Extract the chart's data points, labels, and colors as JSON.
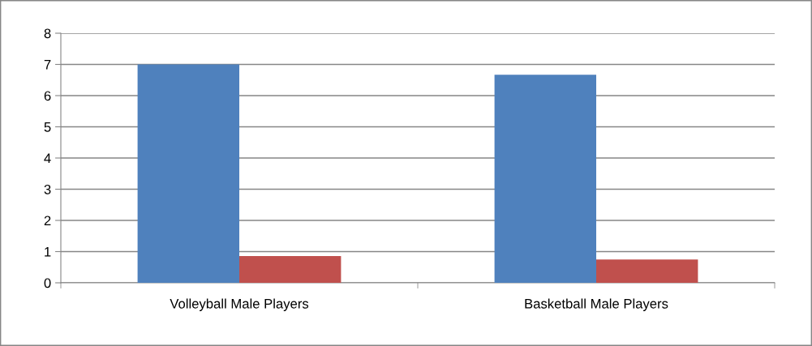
{
  "chart_data": {
    "type": "bar",
    "categories": [
      "Volleyball Male Players",
      "Basketball Male Players"
    ],
    "series": [
      {
        "color": "#4f81bd",
        "values": [
          7.0,
          6.67
        ]
      },
      {
        "color": "#c0504d",
        "values": [
          0.86,
          0.75
        ]
      }
    ],
    "ylim": [
      0,
      8
    ],
    "yticks": [
      0,
      1,
      2,
      3,
      4,
      5,
      6,
      7,
      8
    ],
    "grid": "y",
    "legend": false
  }
}
